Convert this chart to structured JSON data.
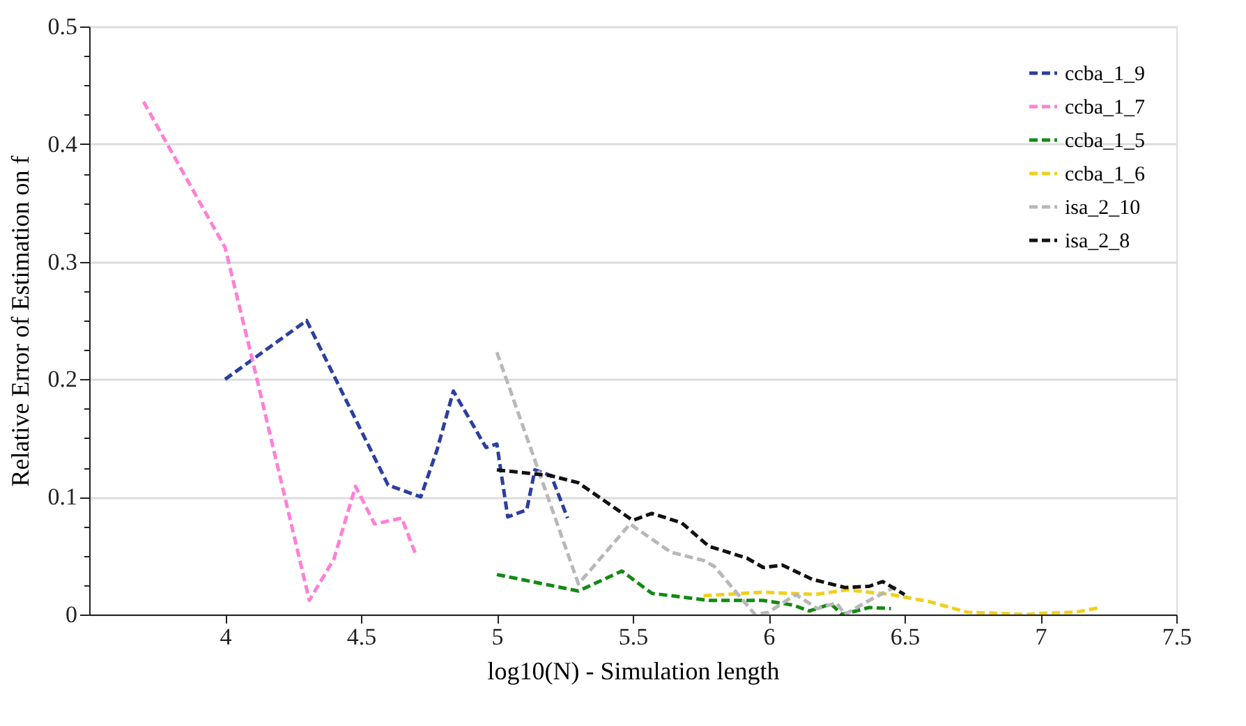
{
  "chart_data": {
    "type": "line",
    "xlabel": "log10(N) - Simulation length",
    "ylabel": "Relative Error of Estimation on f",
    "xlim": [
      3.5,
      7.5
    ],
    "ylim": [
      0,
      0.5
    ],
    "xticks": [
      4,
      4.5,
      5,
      5.5,
      6,
      6.5,
      7,
      7.5
    ],
    "yticks": [
      0,
      {
        "value": 0.025,
        "label": null
      },
      {
        "value": 0.05,
        "label": null
      },
      {
        "value": 0.075,
        "label": null
      },
      0.1,
      {
        "value": 0.125,
        "label": null
      },
      {
        "value": 0.15,
        "label": null
      },
      {
        "value": 0.175,
        "label": null
      },
      0.2,
      {
        "value": 0.225,
        "label": null
      },
      {
        "value": 0.25,
        "label": null
      },
      {
        "value": 0.275,
        "label": null
      },
      0.3,
      {
        "value": 0.325,
        "label": null
      },
      {
        "value": 0.35,
        "label": null
      },
      {
        "value": 0.375,
        "label": null
      },
      0.4,
      {
        "value": 0.425,
        "label": null
      },
      {
        "value": 0.45,
        "label": null
      },
      {
        "value": 0.475,
        "label": null
      },
      0.5
    ],
    "grid": "y",
    "legend": "top right",
    "line_style": "dashed",
    "marker": "none",
    "series": [
      {
        "name": "ccba_1_9",
        "color": "#2b3f9e",
        "x": [
          4.0,
          4.3,
          4.6,
          4.72,
          4.78,
          4.84,
          4.96,
          5.0,
          5.04,
          5.11,
          5.14,
          5.2,
          5.26
        ],
        "values": [
          0.2,
          0.25,
          0.11,
          0.1,
          0.14,
          0.19,
          0.142,
          0.145,
          0.083,
          0.089,
          0.123,
          0.118,
          0.082
        ]
      },
      {
        "name": "ccba_1_7",
        "color": "#ff80d5",
        "x": [
          3.7,
          4.0,
          4.1,
          4.31,
          4.4,
          4.48,
          4.55,
          4.65,
          4.7
        ],
        "values": [
          0.436,
          0.312,
          0.217,
          0.012,
          0.047,
          0.109,
          0.077,
          0.082,
          0.052
        ]
      },
      {
        "name": "ccba_1_5",
        "color": "#138a13",
        "x": [
          5.0,
          5.3,
          5.46,
          5.57,
          5.78,
          5.98,
          6.09,
          6.15,
          6.23,
          6.27,
          6.37,
          6.45
        ],
        "values": [
          0.034,
          0.02,
          0.037,
          0.018,
          0.012,
          0.012,
          0.008,
          0.003,
          0.009,
          0.0,
          0.006,
          0.005
        ]
      },
      {
        "name": "ccba_1_6",
        "color": "#f0d020",
        "x": [
          5.76,
          5.98,
          6.17,
          6.29,
          6.45,
          6.59,
          6.73,
          6.95,
          7.0,
          7.13,
          7.22
        ],
        "values": [
          0.016,
          0.019,
          0.017,
          0.021,
          0.017,
          0.011,
          0.002,
          0.0,
          0.001,
          0.002,
          0.006
        ]
      },
      {
        "name": "isa_2_10",
        "color": "#b8b8b8",
        "x": [
          5.0,
          5.3,
          5.49,
          5.64,
          5.76,
          5.8,
          5.95,
          6.0,
          6.1,
          6.18,
          6.25,
          6.28,
          6.37,
          6.47
        ],
        "values": [
          0.223,
          0.026,
          0.077,
          0.053,
          0.046,
          0.041,
          0.0,
          0.002,
          0.017,
          0.005,
          0.01,
          0.0,
          0.012,
          0.024
        ]
      },
      {
        "name": "isa_2_8",
        "color": "#111111",
        "x": [
          5.0,
          5.2,
          5.3,
          5.5,
          5.57,
          5.68,
          5.78,
          5.92,
          5.98,
          6.05,
          6.16,
          6.28,
          6.37,
          6.42,
          6.5
        ],
        "values": [
          0.123,
          0.118,
          0.112,
          0.08,
          0.086,
          0.078,
          0.058,
          0.048,
          0.04,
          0.042,
          0.03,
          0.023,
          0.024,
          0.028,
          0.017
        ]
      }
    ]
  }
}
